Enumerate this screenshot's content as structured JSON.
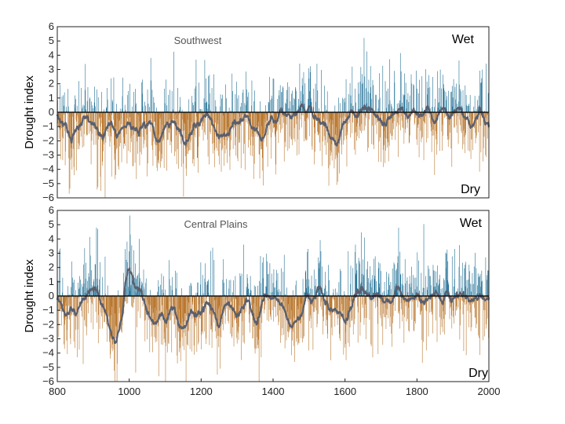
{
  "colors": {
    "wet": "#1f6f95",
    "dry": "#b9772e",
    "smooth": "#5a5f6e",
    "axis": "#222222",
    "panel_label": "#555555"
  },
  "chart_data": [
    {
      "type": "bar",
      "title": "Southwest",
      "ylabel": "Drought index",
      "xlabel": "",
      "xlim": [
        800,
        2000
      ],
      "ylim": [
        -6,
        6
      ],
      "yticks": [
        6,
        5,
        4,
        3,
        2,
        1,
        0,
        -1,
        -2,
        -3,
        -4,
        -5,
        -6
      ],
      "ytick_labels": [
        "6",
        "5",
        "4",
        "3",
        "2",
        "1",
        "0",
        "−1",
        "−2",
        "−3",
        "−4",
        "−5",
        "−6"
      ],
      "annotations": {
        "wet": "Wet",
        "dry": "Dry"
      },
      "series": [
        {
          "name": "",
          "kind": "annual bars, positive=wet (blue), negative=dry (orange)",
          "dense_from_x": 800,
          "dense_to_x": 2000
        },
        {
          "name": "",
          "kind": "smoothed line (gray)"
        }
      ],
      "anchors_smoothed": [
        [
          800,
          0.2
        ],
        [
          825,
          -1.2
        ],
        [
          850,
          -1.6
        ],
        [
          875,
          -0.6
        ],
        [
          900,
          -1.0
        ],
        [
          925,
          -1.5
        ],
        [
          950,
          -0.8
        ],
        [
          975,
          -1.4
        ],
        [
          1000,
          -0.7
        ],
        [
          1025,
          -1.3
        ],
        [
          1050,
          -0.8
        ],
        [
          1075,
          -1.9
        ],
        [
          1100,
          -1.0
        ],
        [
          1125,
          -0.7
        ],
        [
          1150,
          -2.0
        ],
        [
          1175,
          -1.4
        ],
        [
          1200,
          -0.6
        ],
        [
          1225,
          -0.4
        ],
        [
          1250,
          -2.1
        ],
        [
          1275,
          -1.5
        ],
        [
          1300,
          -0.4
        ],
        [
          1325,
          -0.3
        ],
        [
          1350,
          -1.0
        ],
        [
          1375,
          -1.6
        ],
        [
          1400,
          -0.5
        ],
        [
          1425,
          0.3
        ],
        [
          1450,
          -0.4
        ],
        [
          1475,
          0.5
        ],
        [
          1500,
          0.2
        ],
        [
          1525,
          -0.6
        ],
        [
          1550,
          -1.0
        ],
        [
          1575,
          -2.2
        ],
        [
          1600,
          -0.7
        ],
        [
          1625,
          0.3
        ],
        [
          1650,
          -0.4
        ],
        [
          1675,
          0.2
        ],
        [
          1700,
          -0.6
        ],
        [
          1725,
          -0.2
        ],
        [
          1750,
          0.4
        ],
        [
          1775,
          -0.6
        ],
        [
          1800,
          0.0
        ],
        [
          1825,
          0.5
        ],
        [
          1850,
          -0.5
        ],
        [
          1875,
          0.3
        ],
        [
          1900,
          -0.3
        ],
        [
          1925,
          0.6
        ],
        [
          1950,
          -1.2
        ],
        [
          1975,
          0.3
        ],
        [
          2000,
          -1.3
        ]
      ]
    },
    {
      "type": "bar",
      "title": "Central Plains",
      "ylabel": "Drought index",
      "xlabel": "",
      "xlim": [
        800,
        2000
      ],
      "ylim": [
        -6,
        6
      ],
      "xticks": [
        800,
        1000,
        1200,
        1400,
        1600,
        1800,
        2000
      ],
      "xtick_labels": [
        "800",
        "1000",
        "1200",
        "1400",
        "1600",
        "1800",
        "2000"
      ],
      "yticks": [
        6,
        5,
        4,
        3,
        2,
        1,
        0,
        -1,
        -2,
        -3,
        -4,
        -5,
        -6
      ],
      "ytick_labels": [
        "6",
        "5",
        "4",
        "3",
        "2",
        "1",
        "0",
        "−1",
        "−2",
        "−3",
        "−4",
        "−5",
        "−6"
      ],
      "annotations": {
        "wet": "Wet",
        "dry": "Dry"
      },
      "series": [
        {
          "name": "",
          "kind": "annual bars, positive=wet (blue), negative=dry (orange)",
          "dense_from_x": 800,
          "dense_to_x": 2000
        },
        {
          "name": "",
          "kind": "smoothed line (gray)"
        }
      ],
      "anchors_smoothed": [
        [
          800,
          -0.5
        ],
        [
          825,
          -1.0
        ],
        [
          850,
          -1.5
        ],
        [
          875,
          -0.3
        ],
        [
          900,
          0.5
        ],
        [
          925,
          -0.8
        ],
        [
          950,
          -2.5
        ],
        [
          965,
          -3.6
        ],
        [
          980,
          -1.8
        ],
        [
          990,
          1.5
        ],
        [
          1000,
          2.2
        ],
        [
          1025,
          0.6
        ],
        [
          1050,
          -1.2
        ],
        [
          1075,
          -2.0
        ],
        [
          1100,
          -1.5
        ],
        [
          1125,
          -0.8
        ],
        [
          1150,
          -2.2
        ],
        [
          1175,
          -1.0
        ],
        [
          1200,
          -1.4
        ],
        [
          1225,
          -0.6
        ],
        [
          1250,
          -2.0
        ],
        [
          1275,
          -0.4
        ],
        [
          1300,
          -1.2
        ],
        [
          1325,
          -0.5
        ],
        [
          1350,
          -1.7
        ],
        [
          1375,
          -0.4
        ],
        [
          1400,
          -0.2
        ],
        [
          1425,
          -0.6
        ],
        [
          1450,
          -2.4
        ],
        [
          1475,
          -1.2
        ],
        [
          1500,
          -0.3
        ],
        [
          1525,
          0.6
        ],
        [
          1550,
          -0.5
        ],
        [
          1575,
          -1.3
        ],
        [
          1600,
          -1.8
        ],
        [
          1625,
          -0.5
        ],
        [
          1650,
          0.4
        ],
        [
          1675,
          -0.3
        ],
        [
          1700,
          0.2
        ],
        [
          1725,
          -0.5
        ],
        [
          1750,
          0.3
        ],
        [
          1775,
          -0.4
        ],
        [
          1800,
          0.1
        ],
        [
          1825,
          -0.5
        ],
        [
          1850,
          0.3
        ],
        [
          1875,
          -0.4
        ],
        [
          1900,
          -0.2
        ],
        [
          1925,
          0.5
        ],
        [
          1950,
          -0.8
        ],
        [
          1975,
          0.2
        ],
        [
          2000,
          -0.3
        ]
      ]
    }
  ]
}
